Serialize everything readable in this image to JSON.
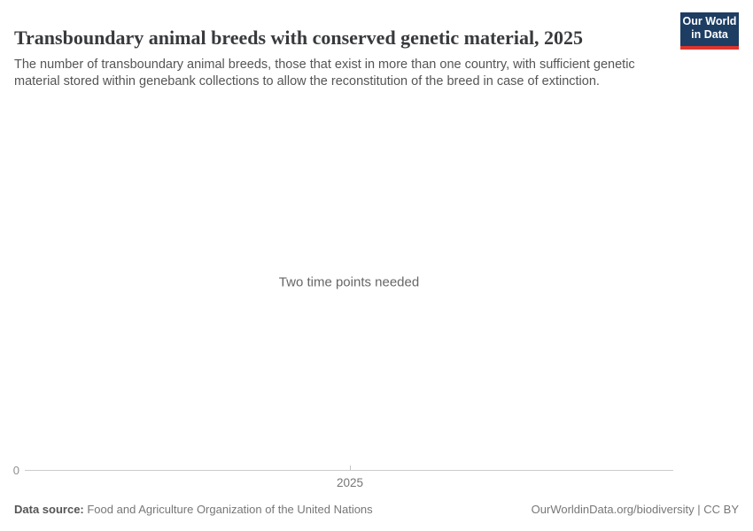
{
  "header": {
    "title": "Transboundary animal breeds with conserved genetic material, 2025",
    "subtitle": "The number of transboundary animal breeds, those that exist in more than one country, with sufficient genetic material stored within genebank collections to allow the reconstitution of the breed in case of extinction.",
    "logo": {
      "line1": "Our World",
      "line2": "in Data"
    }
  },
  "chart": {
    "empty_message": "Two time points needed",
    "y_axis_label": "0",
    "x_axis_tick_label": "2025"
  },
  "footer": {
    "source_label": "Data source:",
    "source_value": " Food and Agriculture Organization of the United Nations",
    "attribution": "OurWorldinData.org/biodiversity | CC BY"
  },
  "colors": {
    "logo_navy": "#1d3d63",
    "logo_red": "#dc352d",
    "title_text": "#383a3d",
    "subtitle_text": "#555555",
    "message_text": "#666666",
    "axis_line": "#cccccc",
    "axis_label": "#757575",
    "footer_text": "#777777",
    "background": "#ffffff"
  },
  "chart_data": {
    "type": "line",
    "title": "Transboundary animal breeds with conserved genetic material, 2025",
    "xlabel": "",
    "ylabel": "",
    "x_ticks": [
      2025
    ],
    "y_ticks": [
      0
    ],
    "ylim_min": 0,
    "series": [],
    "empty_state_message": "Two time points needed",
    "grid": false,
    "legend": false,
    "note": "Chart displays an empty state: no series are plotted because two time points are required."
  }
}
